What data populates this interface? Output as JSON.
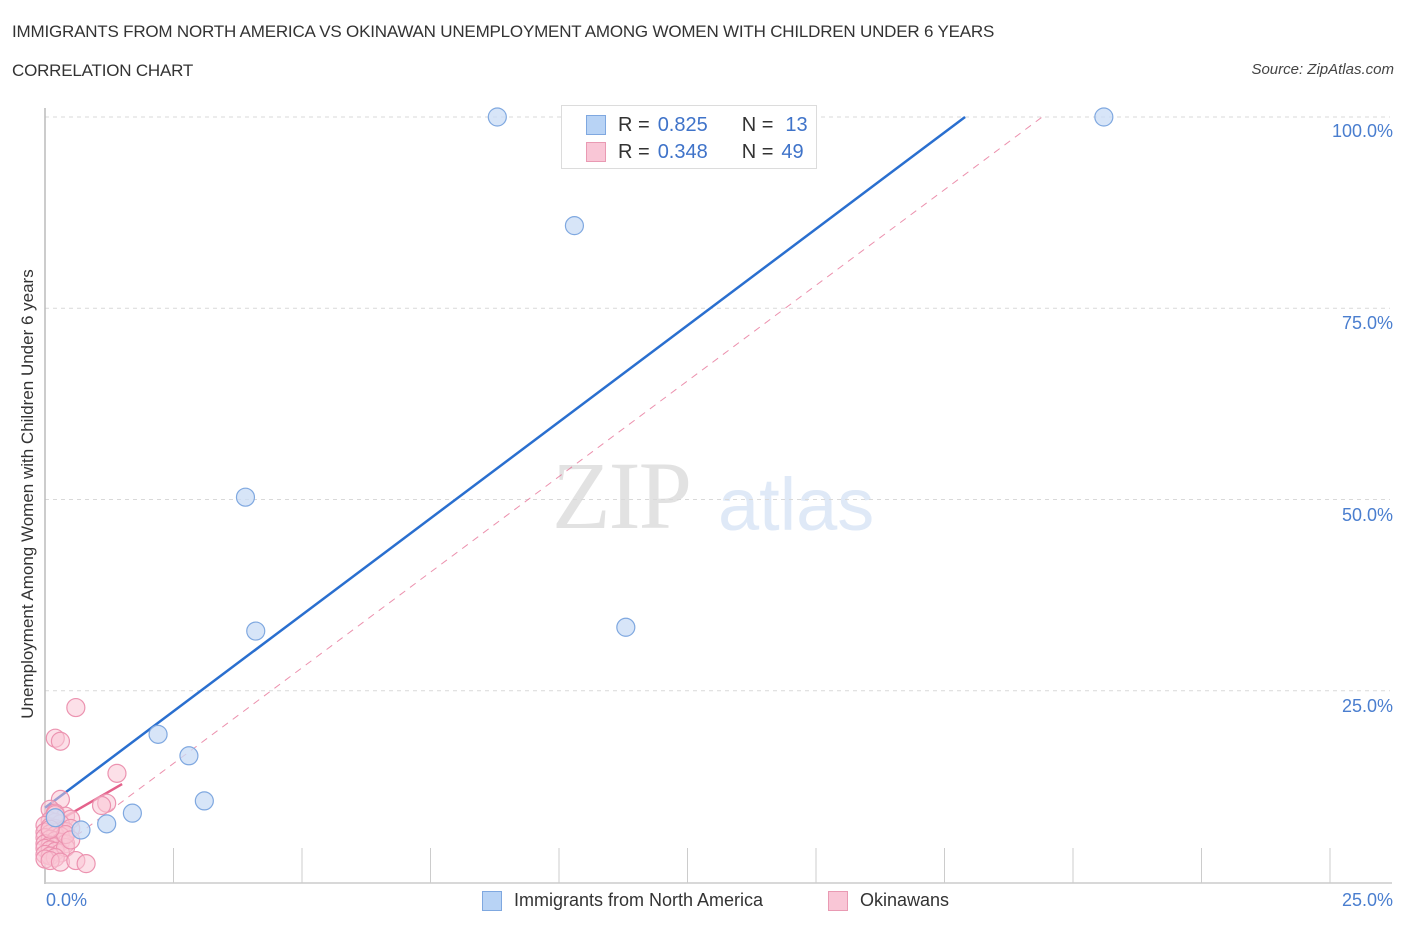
{
  "header": {
    "title": "IMMIGRANTS FROM NORTH AMERICA VS OKINAWAN UNEMPLOYMENT AMONG WOMEN WITH CHILDREN UNDER 6 YEARS",
    "subtitle": "CORRELATION CHART",
    "source": "Source: ZipAtlas.com"
  },
  "watermark": {
    "zip": "ZIP",
    "atlas": "atlas"
  },
  "axes": {
    "ylabel": "Unemployment Among Women with Children Under 6 years",
    "yticks": [
      "100.0%",
      "75.0%",
      "50.0%",
      "25.0%"
    ],
    "xticks": {
      "left": "0.0%",
      "right": "25.0%"
    }
  },
  "legend": {
    "rows": [
      {
        "r_label": "R =",
        "r_value": "0.825",
        "n_label": "N =",
        "n_value": "13",
        "color": "#b8d3f5"
      },
      {
        "r_label": "R =",
        "r_value": "0.348",
        "n_label": "N =",
        "n_value": "49",
        "color": "#f9c6d6"
      }
    ],
    "series_labels": [
      "Immigrants from North America",
      "Okinawans"
    ]
  },
  "colors": {
    "blue_fill": "#c9dcf6",
    "blue_stroke": "#7fa8e0",
    "blue_line": "#2a6fcf",
    "pink_fill": "#f9c6d6",
    "pink_stroke": "#ec93b0",
    "pink_line": "#e4628b",
    "tick_text": "#4a7ecf"
  },
  "chart_data": {
    "type": "scatter",
    "title": "IMMIGRANTS FROM NORTH AMERICA VS OKINAWAN UNEMPLOYMENT AMONG WOMEN WITH CHILDREN UNDER 6 YEARS",
    "subtitle": "CORRELATION CHART",
    "xlabel": "",
    "ylabel": "Unemployment Among Women with Children Under 6 years",
    "xlim": [
      0,
      25
    ],
    "ylim": [
      0,
      100
    ],
    "x_tick_labels": [
      "0.0%",
      "25.0%"
    ],
    "y_tick_labels": [
      "25.0%",
      "50.0%",
      "75.0%",
      "100.0%"
    ],
    "grid": true,
    "legend_position": "bottom",
    "series": [
      {
        "name": "Immigrants from North America",
        "R": 0.825,
        "N": 13,
        "points": [
          [
            8.8,
            100.0
          ],
          [
            20.6,
            100.0
          ],
          [
            10.3,
            85.8
          ],
          [
            3.9,
            50.3
          ],
          [
            4.1,
            32.8
          ],
          [
            11.3,
            33.3
          ],
          [
            2.2,
            19.3
          ],
          [
            2.8,
            16.5
          ],
          [
            3.1,
            10.6
          ],
          [
            1.7,
            9.0
          ],
          [
            1.2,
            7.6
          ],
          [
            0.7,
            6.8
          ],
          [
            0.2,
            8.4
          ]
        ],
        "trend_line": {
          "x": [
            0,
            17.9
          ],
          "y": [
            9.7,
            100.0
          ],
          "style": "solid"
        }
      },
      {
        "name": "Okinawans",
        "R": 0.348,
        "N": 49,
        "points": [
          [
            0.6,
            22.8
          ],
          [
            0.2,
            18.8
          ],
          [
            0.3,
            18.4
          ],
          [
            1.4,
            14.2
          ],
          [
            1.2,
            10.3
          ],
          [
            1.1,
            10.0
          ],
          [
            0.3,
            10.8
          ],
          [
            0.1,
            9.5
          ],
          [
            0.2,
            9.0
          ],
          [
            0.4,
            8.6
          ],
          [
            0.5,
            8.2
          ],
          [
            0.1,
            8.0
          ],
          [
            0.2,
            7.8
          ],
          [
            0.3,
            7.6
          ],
          [
            0.0,
            7.4
          ],
          [
            0.1,
            7.2
          ],
          [
            0.2,
            7.0
          ],
          [
            0.3,
            6.8
          ],
          [
            0.4,
            6.6
          ],
          [
            0.5,
            7.0
          ],
          [
            0.0,
            6.5
          ],
          [
            0.1,
            6.3
          ],
          [
            0.2,
            6.1
          ],
          [
            0.3,
            6.0
          ],
          [
            0.0,
            5.8
          ],
          [
            0.1,
            5.6
          ],
          [
            0.2,
            5.4
          ],
          [
            0.3,
            5.2
          ],
          [
            0.4,
            5.0
          ],
          [
            0.0,
            5.0
          ],
          [
            0.1,
            4.8
          ],
          [
            0.2,
            4.6
          ],
          [
            0.0,
            4.4
          ],
          [
            0.1,
            4.2
          ],
          [
            0.2,
            4.0
          ],
          [
            0.3,
            3.8
          ],
          [
            0.4,
            4.5
          ],
          [
            0.0,
            3.6
          ],
          [
            0.1,
            3.4
          ],
          [
            0.2,
            3.2
          ],
          [
            0.0,
            3.0
          ],
          [
            0.1,
            2.8
          ],
          [
            0.3,
            2.6
          ],
          [
            0.6,
            2.8
          ],
          [
            0.8,
            2.4
          ],
          [
            0.4,
            6.2
          ],
          [
            0.5,
            5.5
          ],
          [
            0.2,
            8.8
          ],
          [
            0.1,
            6.9
          ]
        ],
        "trend_line": {
          "x": [
            0,
            1.5
          ],
          "y": [
            7.0,
            12.8
          ],
          "style": "solid"
        },
        "trend_line_extended": {
          "x": [
            0,
            19.4
          ],
          "y": [
            3.0,
            100.0
          ],
          "style": "dashed"
        }
      }
    ]
  }
}
